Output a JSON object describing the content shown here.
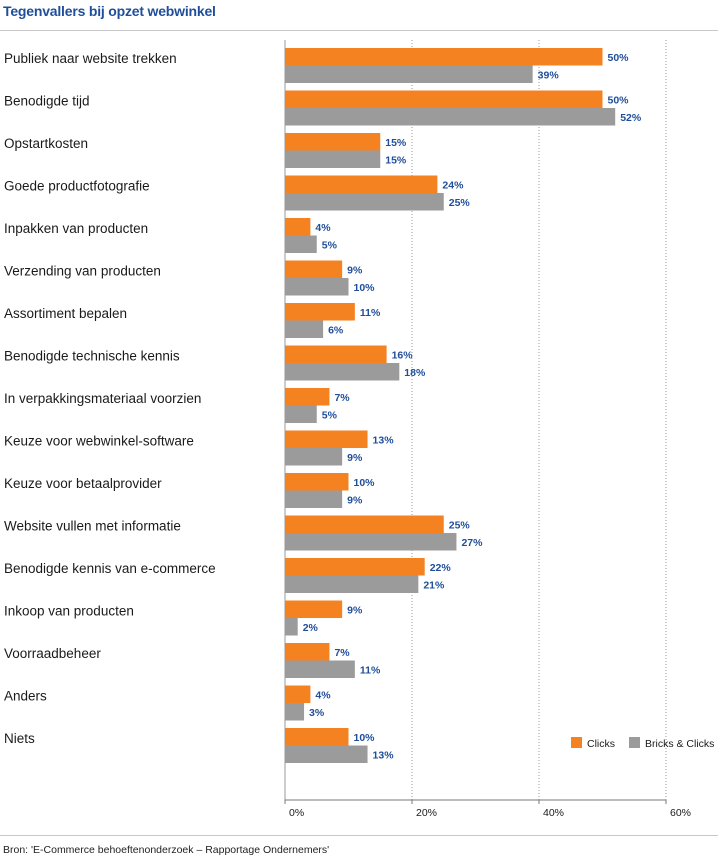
{
  "title": "Tegenvallers bij opzet webwinkel",
  "source": "Bron: 'E-Commerce behoeftenonderzoek – Rapportage Ondernemers'",
  "colors": {
    "clicks": "#f58220",
    "bricks": "#9b9b9b",
    "label": "#1f4e9a"
  },
  "chart_data": {
    "type": "bar",
    "orientation": "horizontal",
    "title": "Tegenvallers bij opzet webwinkel",
    "categories": [
      "Publiek naar website trekken",
      "Benodigde tijd",
      "Opstartkosten",
      "Goede  productfotografie",
      "Inpakken van producten",
      "Verzending van producten",
      "Assortiment bepalen",
      "Benodigde technische kennis",
      "In verpakkingsmateriaal voorzien",
      "Keuze voor webwinkel-software",
      "Keuze voor betaalprovider",
      "Website vullen met informatie",
      "Benodigde kennis van e-commerce",
      "Inkoop van producten",
      "Voorraadbeheer",
      "Anders",
      "Niets"
    ],
    "series": [
      {
        "name": "Clicks",
        "values": [
          50,
          50,
          15,
          24,
          4,
          9,
          11,
          16,
          7,
          13,
          10,
          25,
          22,
          9,
          7,
          4,
          10
        ]
      },
      {
        "name": "Bricks & Clicks",
        "values": [
          39,
          52,
          15,
          25,
          5,
          10,
          6,
          18,
          5,
          9,
          9,
          27,
          21,
          2,
          11,
          3,
          13
        ]
      }
    ],
    "value_suffix": "%",
    "xlim": [
      0,
      60
    ],
    "xticks": [
      0,
      20,
      40,
      60
    ],
    "xtick_labels": [
      "0%",
      "20%",
      "40%",
      "60%"
    ],
    "grid": true,
    "legend_position": "bottom-right"
  }
}
